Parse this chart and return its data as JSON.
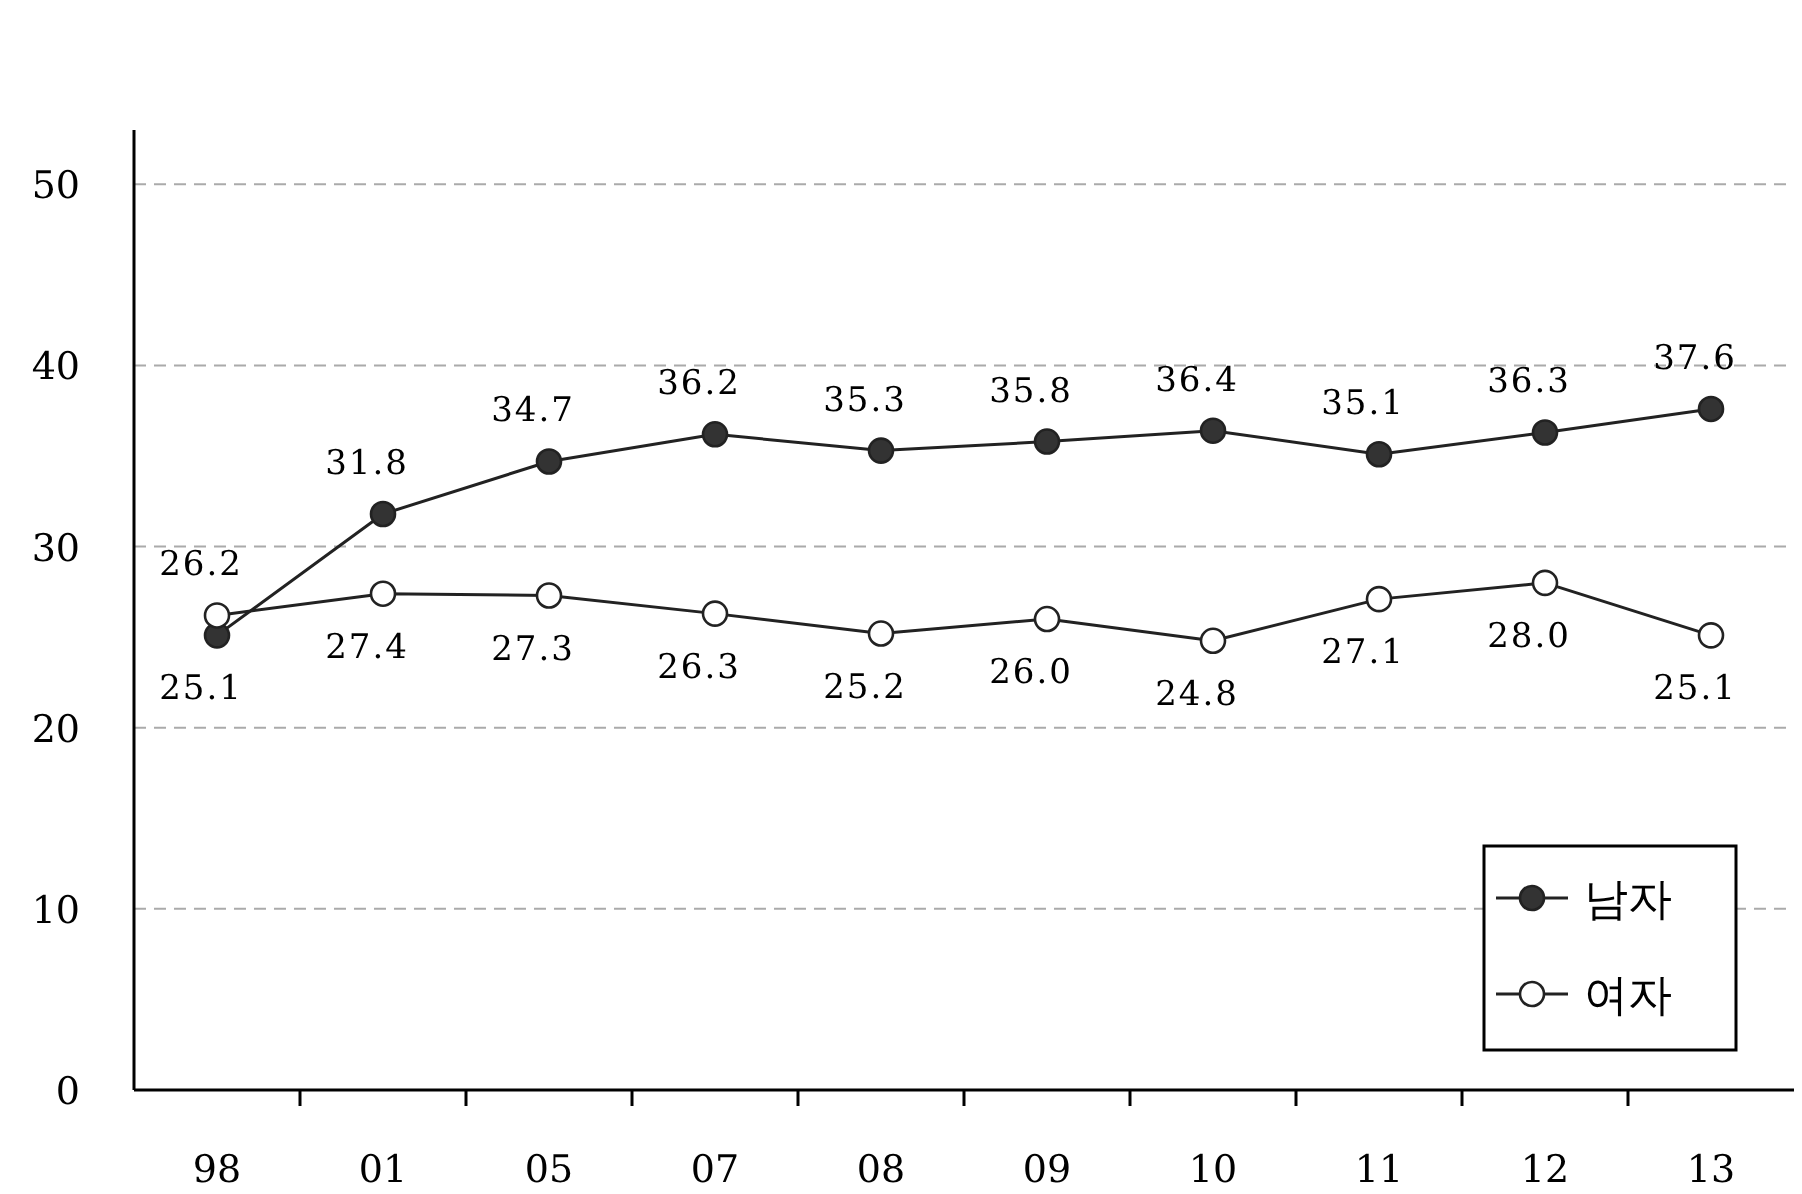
{
  "chart_data": {
    "type": "line",
    "categories": [
      "98",
      "01",
      "05",
      "07",
      "08",
      "09",
      "10",
      "11",
      "12",
      "13"
    ],
    "series": [
      {
        "name": "남자",
        "color": "#333333",
        "values": [
          25.1,
          31.8,
          34.7,
          36.2,
          35.3,
          35.8,
          36.4,
          35.1,
          36.3,
          37.6
        ],
        "value_labels": [
          "25.1",
          "31.8",
          "34.7",
          "36.2",
          "35.3",
          "35.8",
          "36.4",
          "35.1",
          "36.3",
          "37.6"
        ]
      },
      {
        "name": "여자",
        "color": "#ffffff",
        "values": [
          26.2,
          27.4,
          27.3,
          26.3,
          25.2,
          26.0,
          24.8,
          27.1,
          28.0,
          25.1
        ],
        "value_labels": [
          "26.2",
          "27.4",
          "27.3",
          "26.3",
          "25.2",
          "26.0",
          "24.8",
          "27.1",
          "28.0",
          "25.1"
        ]
      }
    ],
    "ylim": [
      0,
      53
    ],
    "yticks": [
      0,
      10,
      20,
      30,
      40,
      50
    ],
    "grid": "y",
    "legend": "bottom right",
    "marker": "circle",
    "line_style": "solid"
  }
}
